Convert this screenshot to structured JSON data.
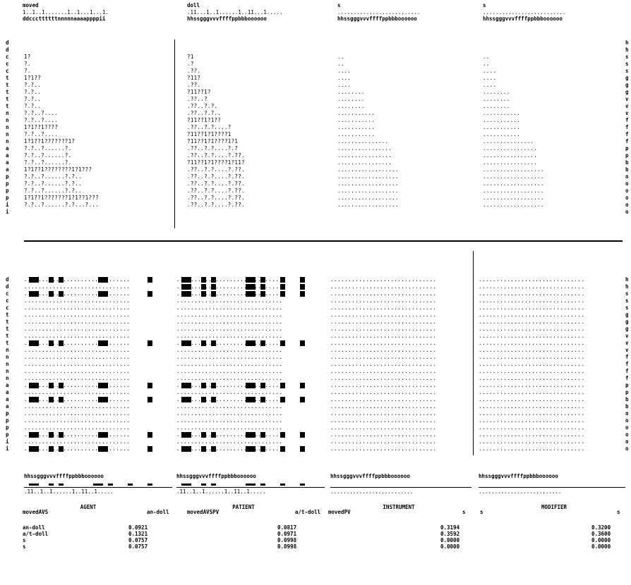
{
  "top": {
    "titles": [
      "moved",
      "doll",
      "s",
      "s"
    ],
    "index_rows": [
      "1..1..1.......1..1...1...1.",
      ".11...1..1......1..11...1.....",
      "..........................",
      ".........................."
    ],
    "letter_rows": [
      "ddcccttttttnnnnnaaaappppii",
      "hhssgggvvvffffppbbboooooo",
      "hhssgggvvvffffppbbboooooo",
      "hhssgggvvvffffppbbboooooo"
    ]
  },
  "row_labels_left": [
    "d",
    "d",
    "c",
    "c",
    "c",
    "t",
    "t",
    "t",
    "t",
    "t",
    "n",
    "n",
    "n",
    "n",
    "n",
    "a",
    "a",
    "a",
    "a",
    "p",
    "p",
    "p",
    "p",
    "i",
    "i"
  ],
  "row_labels_right": [
    "h",
    "h",
    "s",
    "s",
    "s",
    "g",
    "g",
    "g",
    "v",
    "v",
    "v",
    "f",
    "f",
    "f",
    "f",
    "p",
    "p",
    "b",
    "b",
    "o",
    "o",
    "o",
    "o",
    "o",
    "o"
  ],
  "upper": {
    "col1": [
      "",
      "",
      "1?",
      "?.",
      "?.",
      "1?1??",
      "?.?..",
      "?.?..",
      "?.?..",
      "?.?..",
      "?.?..?....",
      "?.?..?....",
      "1?1??1????",
      "?.?..?....",
      "1?1??1???????1?",
      "?.?..?......?.",
      "?.?..?......?.",
      "?.?..?......?.",
      "1?1??1????????1?1???",
      "?.?..?......?.?..",
      "?.?..?......?.?..",
      "?.?..?......?.?..",
      "1?1??1???????1?1??1???",
      "?.?..?......?.?...?..."
    ],
    "col2": [
      "",
      "",
      "?1",
      ".?",
      ".??.",
      "?11?",
      ".??.",
      "?11??1?",
      ".??..?",
      ".??..?.?.",
      ".??..?.?..",
      "?11??1?1??",
      ".??..?.?....?",
      "?11??1?1????1",
      "?11??1?1????1?1",
      ".??..?.?....?.?",
      ".??..?.?....?.??.",
      "?11??1?1????1?11?",
      ".??..?.?....?.??.",
      ".??..?.?....?.??.",
      ".??..?.?....?.??.",
      ".??..?.?....?.??.",
      ".??..?.?....?.??.",
      ".??..?.?....?.??."
    ],
    "col3": [
      "",
      "",
      "..",
      "..",
      "....",
      "....",
      "....",
      "........",
      "........",
      "........",
      "...........",
      "...........",
      "...........",
      "...........",
      "...............",
      "................",
      "................",
      "................",
      "..................",
      "..................",
      "..................",
      "..................",
      "..................",
      ".................."
    ],
    "col4": [
      "",
      "",
      "..",
      "..",
      "....",
      "....",
      "....",
      "........",
      "........",
      "........",
      "...........",
      "...........",
      "...........",
      "...........",
      "...............",
      "................",
      "................",
      "................",
      "..................",
      "..................",
      "..................",
      "..................",
      "..................",
      ".................."
    ]
  },
  "lower": {
    "letters": "hhssgggvvvffffppbbboooooo",
    "marks1": ".11..1..1......1..11..1.....",
    "marks2": ".11..1..1......1..11..1.....",
    "marks3": "..........................",
    "marks4": ".........................."
  },
  "roles": [
    {
      "name": "AGENT",
      "left": "movedAVS",
      "right": "an-doll"
    },
    {
      "name": "PATIENT",
      "left": "movedAVSPV",
      "right": "a/t-doll"
    },
    {
      "name": "INSTRUMENT",
      "left": "movedPV",
      "right": "s"
    },
    {
      "name": "MODIFIER",
      "left": "s",
      "right": "s"
    }
  ],
  "candidates": [
    "an-doll",
    "a/t-doll",
    "s",
    "s"
  ],
  "scores": [
    [
      "0.0921",
      "0.1321",
      "0.0757",
      "0.0757"
    ],
    [
      "0.0817",
      "0.0971",
      "0.0998",
      "0.0998"
    ],
    [
      "0.3194",
      "0.3592",
      "0.0000",
      "0.0000"
    ],
    [
      "0.3200",
      "0.3600",
      "0.0000",
      "0.0000"
    ]
  ]
}
